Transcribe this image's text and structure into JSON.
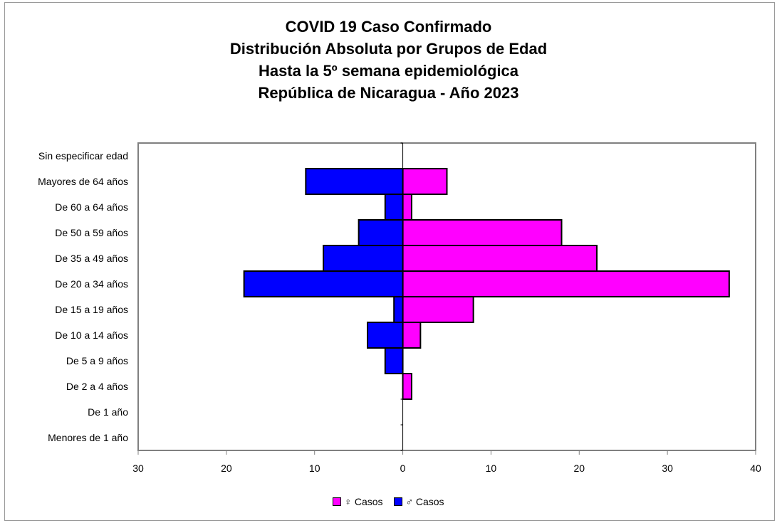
{
  "title_lines": [
    "COVID 19 Caso Confirmado",
    "Distribución Absoluta por Grupos de Edad",
    "Hasta la 5º semana epidemiológica",
    "República de Nicaragua - Año 2023"
  ],
  "chart_data": {
    "type": "bar",
    "orientation": "horizontal",
    "stacked_pyramid": true,
    "categories": [
      "Sin especificar edad",
      "Mayores de 64 años",
      "De 60 a 64 años",
      "De 50 a 59 años",
      "De 35 a 49 años",
      "De 20 a 34 años",
      "De 15 a 19 años",
      "De 10 a 14 años",
      "De 5 a 9 años",
      "De 2 a 4 años",
      "De 1 año",
      "Menores de 1 año"
    ],
    "series": [
      {
        "name": "♀ Casos",
        "color": "#ff00ff",
        "values": [
          0,
          5,
          1,
          18,
          22,
          37,
          8,
          2,
          0,
          1,
          0,
          0
        ]
      },
      {
        "name": "♂ Casos",
        "color": "#0000ff",
        "values": [
          0,
          11,
          2,
          5,
          9,
          18,
          1,
          4,
          2,
          0,
          0,
          0
        ]
      }
    ],
    "xlim": [
      -30,
      40
    ],
    "xticks": [
      -30,
      -20,
      -10,
      0,
      10,
      20,
      30,
      40
    ],
    "xtick_labels": [
      "30",
      "20",
      "10",
      "0",
      "10",
      "20",
      "30",
      "40"
    ],
    "xlabel": "",
    "ylabel": "",
    "legend_position": "bottom",
    "grid": false
  }
}
